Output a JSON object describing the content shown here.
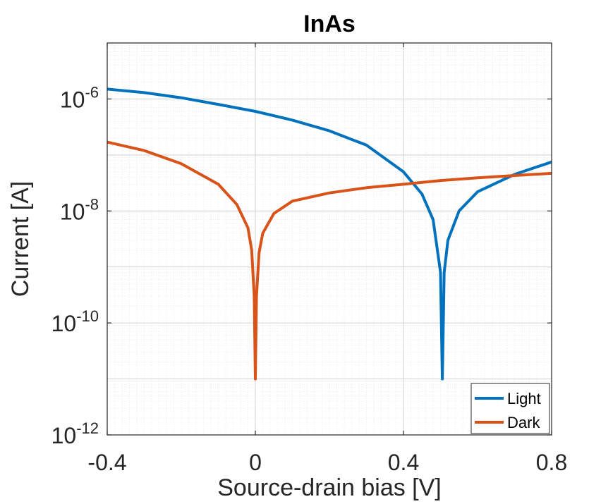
{
  "chart_data": {
    "type": "line",
    "title": "InAs",
    "xlabel": "Source-drain bias [V]",
    "ylabel": "Current [A]",
    "xlim": [
      -0.4,
      0.8
    ],
    "ylim": [
      1e-12,
      1e-05
    ],
    "yscale": "log",
    "grid": true,
    "legend_position": "bottom-right",
    "xticks": [
      -0.4,
      0,
      0.4,
      0.8
    ],
    "xtick_labels": [
      "-0.4",
      "0",
      "0.4",
      "0.8"
    ],
    "yticks": [
      1e-12,
      1e-10,
      1e-08,
      1e-06
    ],
    "ytick_labels": [
      {
        "base": "10",
        "exp": "-12"
      },
      {
        "base": "10",
        "exp": "-10"
      },
      {
        "base": "10",
        "exp": "-8"
      },
      {
        "base": "10",
        "exp": "-6"
      }
    ],
    "series": [
      {
        "name": "Light",
        "color": "#0072BD",
        "x": [
          -0.4,
          -0.3,
          -0.2,
          -0.1,
          0.0,
          0.1,
          0.2,
          0.3,
          0.4,
          0.45,
          0.48,
          0.5,
          0.505,
          0.51,
          0.52,
          0.55,
          0.6,
          0.7,
          0.8
        ],
        "y": [
          1.5e-06,
          1.3e-06,
          1.05e-06,
          8e-07,
          6e-07,
          4.2e-07,
          2.7e-07,
          1.5e-07,
          5e-08,
          2e-08,
          7e-09,
          8e-10,
          1e-11,
          8e-10,
          3e-09,
          1e-08,
          2.2e-08,
          4.5e-08,
          7.5e-08
        ]
      },
      {
        "name": "Dark",
        "color": "#D95319",
        "x": [
          -0.4,
          -0.3,
          -0.2,
          -0.1,
          -0.05,
          -0.02,
          -0.01,
          -0.003,
          0.0,
          0.003,
          0.01,
          0.02,
          0.05,
          0.1,
          0.2,
          0.3,
          0.4,
          0.5,
          0.6,
          0.7,
          0.8
        ],
        "y": [
          1.7e-07,
          1.2e-07,
          7e-08,
          3e-08,
          1.3e-08,
          5e-09,
          2e-09,
          3e-10,
          1e-11,
          3e-10,
          1.8e-09,
          4e-09,
          9e-09,
          1.5e-08,
          2.1e-08,
          2.6e-08,
          3e-08,
          3.5e-08,
          3.9e-08,
          4.3e-08,
          4.7e-08
        ]
      }
    ]
  }
}
